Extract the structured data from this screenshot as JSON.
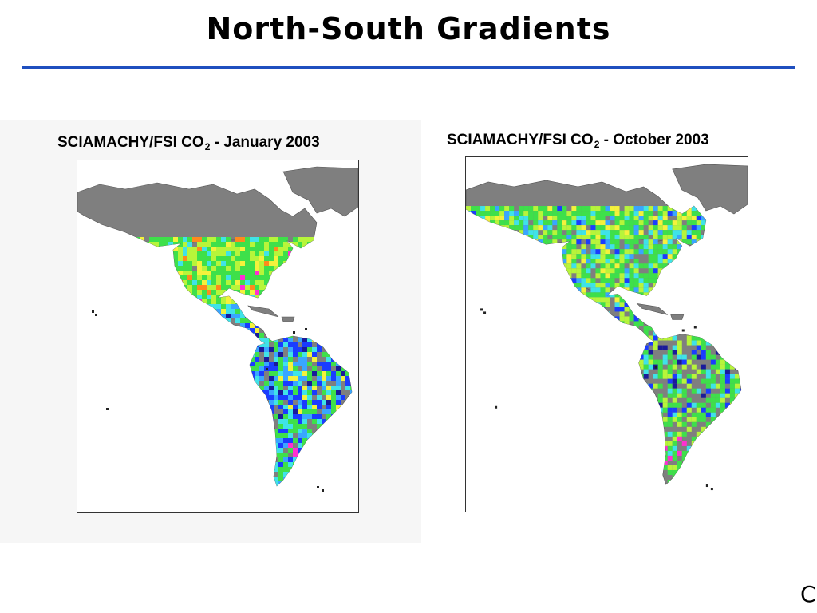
{
  "slide": {
    "title": "North-South Gradients",
    "rule_color": "#1f4fbf",
    "corner_glyph": "C"
  },
  "maps": [
    {
      "title_prefix": "SCIAMACHY/FSI CO",
      "title_subscript": "2",
      "title_suffix": " - January 2003",
      "land_color": "#7f7f7f"
    },
    {
      "title_prefix": "SCIAMACHY/FSI CO",
      "title_subscript": "2",
      "title_suffix": " - October 2003",
      "land_color": "#7f7f7f"
    }
  ],
  "colors": {
    "ocean": "#ffffff",
    "land": "#7f7f7f",
    "green": "#3ee04a",
    "yellowgreen": "#b7f53a",
    "yellow": "#f4f23c",
    "cyan": "#3fe3e8",
    "lightblue": "#39a6ff",
    "blue": "#1a3cff",
    "navy": "#1a1a9a",
    "orange": "#ff8a1c",
    "magenta": "#ff2fd2",
    "red": "#e02020"
  }
}
